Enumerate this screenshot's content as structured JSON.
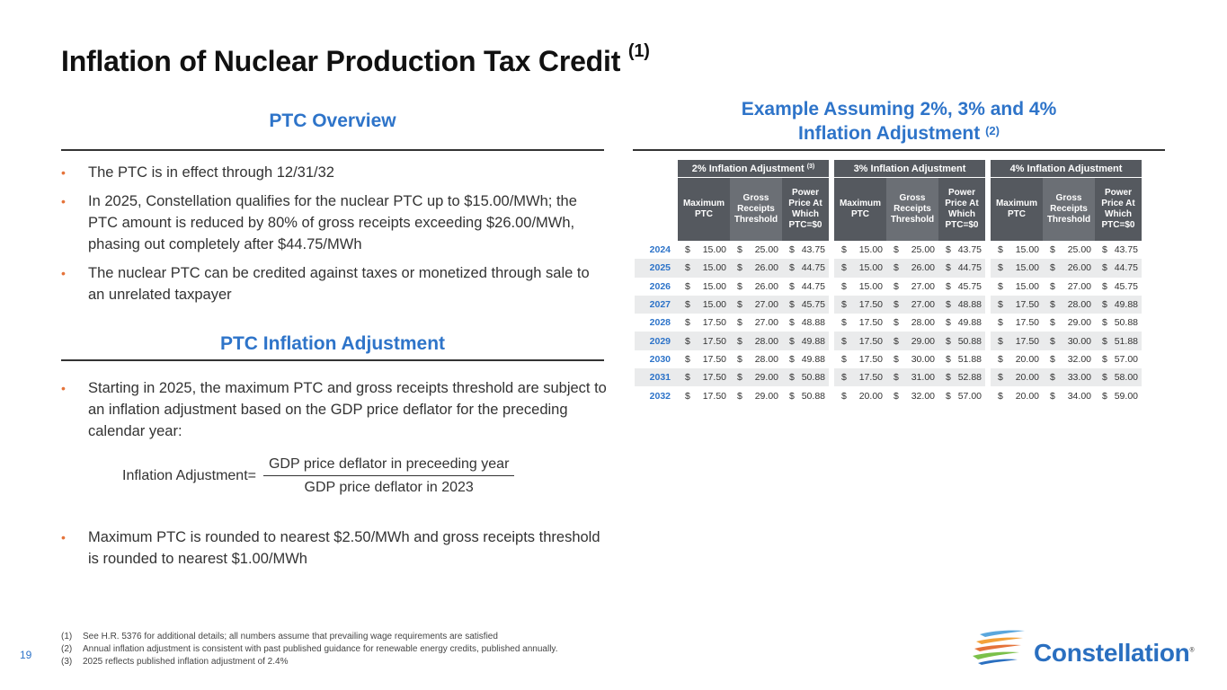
{
  "title": "Inflation of Nuclear Production Tax Credit",
  "title_note": "(1)",
  "overview": {
    "heading": "PTC Overview",
    "bullets": [
      "The PTC is in effect through 12/31/32",
      "In 2025, Constellation qualifies for the nuclear PTC up to $15.00/MWh; the PTC amount is reduced by 80% of gross receipts exceeding $26.00/MWh, phasing out completely after $44.75/MWh",
      "The nuclear PTC can be credited against taxes or monetized through sale to an unrelated taxpayer"
    ]
  },
  "inflation": {
    "heading": "PTC Inflation Adjustment",
    "bullets": [
      "Starting in 2025, the maximum PTC and gross receipts threshold are subject to an inflation adjustment based on the GDP price deflator for the preceding calendar year:",
      "Maximum PTC is rounded to nearest $2.50/MWh and gross receipts threshold is rounded to nearest $1.00/MWh"
    ],
    "formula": {
      "label": "Inflation Adjustment=",
      "numerator": "GDP price deflator in preceeding year",
      "denominator": "GDP price deflator in 2023"
    }
  },
  "example": {
    "heading_line1": "Example Assuming 2%, 3% and 4%",
    "heading_line2": "Inflation Adjustment",
    "heading_note": "(2)",
    "groups": [
      {
        "label": "2% Inflation Adjustment",
        "note": "(3)"
      },
      {
        "label": "3% Inflation Adjustment",
        "note": ""
      },
      {
        "label": "4% Inflation Adjustment",
        "note": ""
      }
    ],
    "subheaders": [
      "Maximum PTC",
      "Gross Receipts Threshold",
      "Power Price At Which PTC=$0"
    ],
    "currency": "$",
    "rows": [
      {
        "year": "2024",
        "v": [
          "15.00",
          "25.00",
          "43.75",
          "15.00",
          "25.00",
          "43.75",
          "15.00",
          "25.00",
          "43.75"
        ]
      },
      {
        "year": "2025",
        "v": [
          "15.00",
          "26.00",
          "44.75",
          "15.00",
          "26.00",
          "44.75",
          "15.00",
          "26.00",
          "44.75"
        ]
      },
      {
        "year": "2026",
        "v": [
          "15.00",
          "26.00",
          "44.75",
          "15.00",
          "27.00",
          "45.75",
          "15.00",
          "27.00",
          "45.75"
        ]
      },
      {
        "year": "2027",
        "v": [
          "15.00",
          "27.00",
          "45.75",
          "17.50",
          "27.00",
          "48.88",
          "17.50",
          "28.00",
          "49.88"
        ]
      },
      {
        "year": "2028",
        "v": [
          "17.50",
          "27.00",
          "48.88",
          "17.50",
          "28.00",
          "49.88",
          "17.50",
          "29.00",
          "50.88"
        ]
      },
      {
        "year": "2029",
        "v": [
          "17.50",
          "28.00",
          "49.88",
          "17.50",
          "29.00",
          "50.88",
          "17.50",
          "30.00",
          "51.88"
        ]
      },
      {
        "year": "2030",
        "v": [
          "17.50",
          "28.00",
          "49.88",
          "17.50",
          "30.00",
          "51.88",
          "20.00",
          "32.00",
          "57.00"
        ]
      },
      {
        "year": "2031",
        "v": [
          "17.50",
          "29.00",
          "50.88",
          "17.50",
          "31.00",
          "52.88",
          "20.00",
          "33.00",
          "58.00"
        ]
      },
      {
        "year": "2032",
        "v": [
          "17.50",
          "29.00",
          "50.88",
          "20.00",
          "32.00",
          "57.00",
          "20.00",
          "34.00",
          "59.00"
        ]
      }
    ]
  },
  "footnotes": [
    {
      "n": "(1)",
      "text": "See H.R. 5376 for additional details; all numbers assume that prevailing wage requirements are satisfied"
    },
    {
      "n": "(2)",
      "text": "Annual inflation adjustment is consistent with past published guidance for renewable energy credits, published annually."
    },
    {
      "n": "(3)",
      "text": "2025 reflects published inflation adjustment of 2.4%"
    }
  ],
  "page_number": "19",
  "logo": {
    "name": "Constellation",
    "mark": "®"
  },
  "colors": {
    "accent_blue": "#2e74c9",
    "bullet_orange": "#e5733a",
    "table_header": "#55595f",
    "row_stripe": "#eaebec"
  }
}
